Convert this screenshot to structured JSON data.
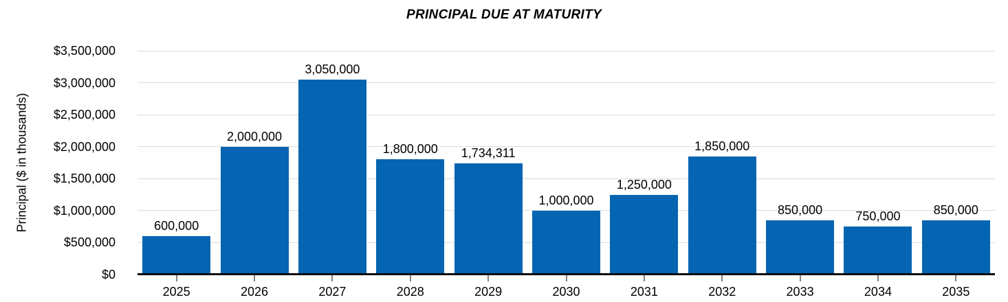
{
  "chart_data": {
    "type": "bar",
    "title": "PRINCIPAL DUE AT MATURITY",
    "ylabel": "Principal ($ in thousands)",
    "xlabel": "",
    "categories": [
      "2025",
      "2026",
      "2027",
      "2028",
      "2029",
      "2030",
      "2031",
      "2032",
      "2033",
      "2034",
      "2035"
    ],
    "values": [
      600000,
      2000000,
      3050000,
      1800000,
      1734311,
      1000000,
      1250000,
      1850000,
      850000,
      750000,
      850000
    ],
    "bar_value_labels": [
      "600,000",
      "2,000,000",
      "3,050,000",
      "1,800,000",
      "1,734,311",
      "1,000,000",
      "1,250,000",
      "1,850,000",
      "850,000",
      "750,000",
      "850,000"
    ],
    "y_axis": {
      "ticks": [
        0,
        500000,
        1000000,
        1500000,
        2000000,
        2500000,
        3000000,
        3500000
      ],
      "tick_labels": [
        "$0",
        "$500,000",
        "$1,000,000",
        "$1,500,000",
        "$2,000,000",
        "$2,500,000",
        "$3,000,000",
        "$3,500,000"
      ],
      "ylim": [
        0,
        3500000
      ]
    },
    "grid": "horizontal",
    "legend": "none",
    "colors": {
      "bar": "#0665B2",
      "gridline": "#DCDCDC",
      "axis_line": "#0D0D0D",
      "tick_mark": "#808080",
      "text": "#000000",
      "background": "#FFFFFF"
    }
  }
}
